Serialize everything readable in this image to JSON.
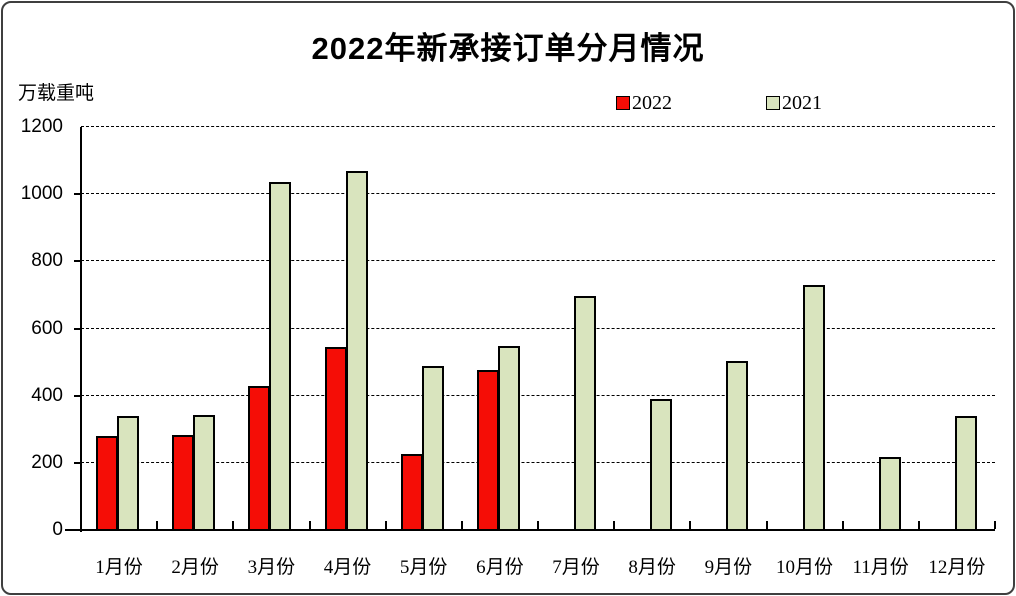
{
  "title": "2022年新承接订单分月情况",
  "unit_label": "万载重吨",
  "legend": [
    {
      "label": "2022",
      "color": "#f50d06"
    },
    {
      "label": "2021",
      "color": "#d9e4be"
    }
  ],
  "chart_data": {
    "type": "bar",
    "title": "2022年新承接订单分月情况",
    "ylabel": "万载重吨",
    "xlabel": "",
    "ylim": [
      0,
      1200
    ],
    "ytick_step": 200,
    "grid": "horizontal-dashed",
    "legend_position": "top",
    "categories": [
      "1月份",
      "2月份",
      "3月份",
      "4月份",
      "5月份",
      "6月份",
      "7月份",
      "8月份",
      "9月份",
      "10月份",
      "11月份",
      "12月份"
    ],
    "series": [
      {
        "name": "2022",
        "color": "#f50d06",
        "values": [
          281,
          283,
          429,
          546,
          227,
          475,
          null,
          null,
          null,
          null,
          null,
          null
        ]
      },
      {
        "name": "2021",
        "color": "#d9e4be",
        "values": [
          338,
          341,
          1036,
          1068,
          489,
          549,
          698,
          390,
          504,
          731,
          216,
          340
        ]
      }
    ]
  }
}
